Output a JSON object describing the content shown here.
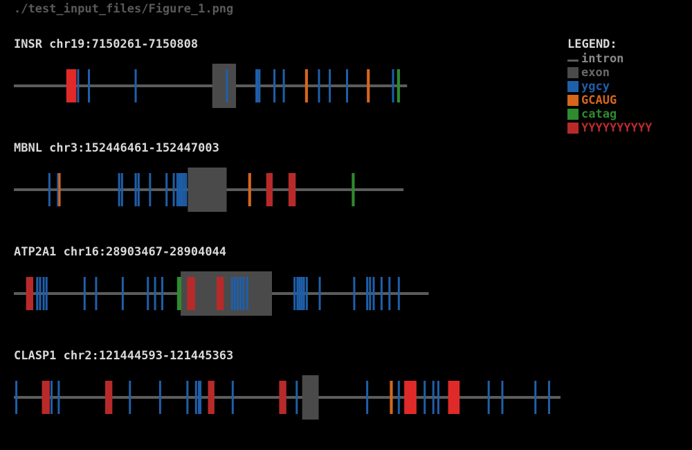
{
  "figure_title": "./test_input_files/Figure_1.png",
  "legend": {
    "title": "LEGEND:",
    "items": [
      {
        "key": "intron",
        "label": "intron",
        "color": "#5c5c5c",
        "kind": "line",
        "icon": "line-swatch"
      },
      {
        "key": "exon",
        "label": "exon",
        "color": "#4a4a4a",
        "kind": "box",
        "icon": "square-swatch"
      },
      {
        "key": "ygcy",
        "label": "ygcy",
        "color": "#1f5faa",
        "kind": "box",
        "icon": "square-swatch"
      },
      {
        "key": "GCAUG",
        "label": "GCAUG",
        "color": "#d5661c",
        "kind": "box",
        "icon": "square-swatch"
      },
      {
        "key": "catag",
        "label": "catag",
        "color": "#2e8b2e",
        "kind": "box",
        "icon": "square-swatch"
      },
      {
        "key": "YYYYYYYYYY",
        "label": "YYYYYYYYYY",
        "color": "#b82a2a",
        "kind": "box",
        "icon": "square-swatch"
      }
    ]
  },
  "chart_data": {
    "type": "gene_motif_map",
    "genes": [
      {
        "label": "INSR chr19:7150261-7150808",
        "length": 547,
        "exon": [
          276,
          309
        ],
        "motifs": [
          {
            "type": "YYYYYYYYYY",
            "start": 73,
            "end": 87
          },
          {
            "type": "ygcy",
            "start": 88,
            "end": 90
          },
          {
            "type": "ygcy",
            "start": 103,
            "end": 105
          },
          {
            "type": "ygcy",
            "start": 168,
            "end": 170
          },
          {
            "type": "ygcy",
            "start": 295,
            "end": 297
          },
          {
            "type": "ygcy",
            "start": 336,
            "end": 340
          },
          {
            "type": "ygcy",
            "start": 340,
            "end": 343
          },
          {
            "type": "ygcy",
            "start": 361,
            "end": 363
          },
          {
            "type": "ygcy",
            "start": 374,
            "end": 376
          },
          {
            "type": "GCAUG",
            "start": 405,
            "end": 409
          },
          {
            "type": "ygcy",
            "start": 423,
            "end": 425
          },
          {
            "type": "ygcy",
            "start": 438,
            "end": 440
          },
          {
            "type": "ygcy",
            "start": 462,
            "end": 464
          },
          {
            "type": "GCAUG",
            "start": 491,
            "end": 495
          },
          {
            "type": "ygcy",
            "start": 526,
            "end": 528
          },
          {
            "type": "catag",
            "start": 533,
            "end": 537
          }
        ]
      },
      {
        "label": "MBNL chr3:152446461-152447003",
        "length": 542,
        "exon": [
          242,
          296
        ],
        "motifs": [
          {
            "type": "ygcy",
            "start": 48,
            "end": 50
          },
          {
            "type": "ygcy",
            "start": 60,
            "end": 62
          },
          {
            "type": "GCAUG",
            "start": 62,
            "end": 65
          },
          {
            "type": "ygcy",
            "start": 145,
            "end": 147
          },
          {
            "type": "ygcy",
            "start": 149,
            "end": 151
          },
          {
            "type": "ygcy",
            "start": 168,
            "end": 171
          },
          {
            "type": "ygcy",
            "start": 172,
            "end": 175
          },
          {
            "type": "ygcy",
            "start": 188,
            "end": 190
          },
          {
            "type": "ygcy",
            "start": 211,
            "end": 213
          },
          {
            "type": "ygcy",
            "start": 221,
            "end": 223
          },
          {
            "type": "ygcy",
            "start": 226,
            "end": 228
          },
          {
            "type": "ygcy",
            "start": 229,
            "end": 231
          },
          {
            "type": "ygcy",
            "start": 232,
            "end": 234
          },
          {
            "type": "ygcy",
            "start": 235,
            "end": 237
          },
          {
            "type": "ygcy",
            "start": 238,
            "end": 240
          },
          {
            "type": "GCAUG",
            "start": 326,
            "end": 330
          },
          {
            "type": "YYYYYYYYYY",
            "start": 351,
            "end": 360
          },
          {
            "type": "YYYYYYYYYY",
            "start": 382,
            "end": 392
          },
          {
            "type": "catag",
            "start": 470,
            "end": 474
          }
        ]
      },
      {
        "label": "ATP2A1 chr16:28903467-28904044",
        "length": 577,
        "exon": [
          232,
          359
        ],
        "motifs": [
          {
            "type": "YYYYYYYYYY",
            "start": 17,
            "end": 27
          },
          {
            "type": "ygcy",
            "start": 31,
            "end": 34
          },
          {
            "type": "ygcy",
            "start": 35,
            "end": 38
          },
          {
            "type": "ygcy",
            "start": 40,
            "end": 42
          },
          {
            "type": "ygcy",
            "start": 44,
            "end": 46
          },
          {
            "type": "ygcy",
            "start": 97,
            "end": 99
          },
          {
            "type": "ygcy",
            "start": 113,
            "end": 115
          },
          {
            "type": "ygcy",
            "start": 150,
            "end": 152
          },
          {
            "type": "ygcy",
            "start": 185,
            "end": 187
          },
          {
            "type": "ygcy",
            "start": 195,
            "end": 197
          },
          {
            "type": "ygcy",
            "start": 205,
            "end": 207
          },
          {
            "type": "catag",
            "start": 227,
            "end": 233
          },
          {
            "type": "YYYYYYYYYY",
            "start": 241,
            "end": 252
          },
          {
            "type": "YYYYYYYYYY",
            "start": 282,
            "end": 292
          },
          {
            "type": "ygcy",
            "start": 302,
            "end": 304
          },
          {
            "type": "ygcy",
            "start": 306,
            "end": 308
          },
          {
            "type": "ygcy",
            "start": 310,
            "end": 312
          },
          {
            "type": "ygcy",
            "start": 314,
            "end": 316
          },
          {
            "type": "ygcy",
            "start": 318,
            "end": 320
          },
          {
            "type": "ygcy",
            "start": 323,
            "end": 325
          },
          {
            "type": "ygcy",
            "start": 389,
            "end": 391
          },
          {
            "type": "ygcy",
            "start": 393,
            "end": 395
          },
          {
            "type": "ygcy",
            "start": 396,
            "end": 398
          },
          {
            "type": "ygcy",
            "start": 399,
            "end": 401
          },
          {
            "type": "ygcy",
            "start": 402,
            "end": 404
          },
          {
            "type": "ygcy",
            "start": 406,
            "end": 408
          },
          {
            "type": "ygcy",
            "start": 424,
            "end": 426
          },
          {
            "type": "ygcy",
            "start": 472,
            "end": 474
          },
          {
            "type": "ygcy",
            "start": 490,
            "end": 492
          },
          {
            "type": "ygcy",
            "start": 494,
            "end": 496
          },
          {
            "type": "ygcy",
            "start": 499,
            "end": 501
          },
          {
            "type": "ygcy",
            "start": 510,
            "end": 512
          },
          {
            "type": "ygcy",
            "start": 521,
            "end": 523
          },
          {
            "type": "ygcy",
            "start": 534,
            "end": 536
          }
        ]
      },
      {
        "label": "CLASP1 chr2:121444593-121445363",
        "length": 770,
        "exon": [
          401,
          424
        ],
        "motifs": [
          {
            "type": "ygcy",
            "start": 2,
            "end": 4
          },
          {
            "type": "YYYYYYYYYY",
            "start": 39,
            "end": 50
          },
          {
            "type": "ygcy",
            "start": 51,
            "end": 53
          },
          {
            "type": "ygcy",
            "start": 61,
            "end": 63
          },
          {
            "type": "YYYYYYYYYY",
            "start": 127,
            "end": 137
          },
          {
            "type": "ygcy",
            "start": 160,
            "end": 162
          },
          {
            "type": "ygcy",
            "start": 202,
            "end": 204
          },
          {
            "type": "ygcy",
            "start": 240,
            "end": 242
          },
          {
            "type": "ygcy",
            "start": 252,
            "end": 254
          },
          {
            "type": "ygcy",
            "start": 256,
            "end": 258
          },
          {
            "type": "ygcy",
            "start": 258,
            "end": 260
          },
          {
            "type": "YYYYYYYYYY",
            "start": 270,
            "end": 279
          },
          {
            "type": "ygcy",
            "start": 303,
            "end": 305
          },
          {
            "type": "YYYYYYYYYY",
            "start": 369,
            "end": 379
          },
          {
            "type": "ygcy",
            "start": 392,
            "end": 394
          },
          {
            "type": "ygcy",
            "start": 490,
            "end": 492
          },
          {
            "type": "GCAUG",
            "start": 523,
            "end": 527
          },
          {
            "type": "ygcy",
            "start": 534,
            "end": 536
          },
          {
            "type": "YYYYYYYYYY",
            "start": 543,
            "end": 560
          },
          {
            "type": "ygcy",
            "start": 570,
            "end": 572
          },
          {
            "type": "ygcy",
            "start": 582,
            "end": 584
          },
          {
            "type": "ygcy",
            "start": 589,
            "end": 591
          },
          {
            "type": "YYYYYYYYYY",
            "start": 604,
            "end": 620
          },
          {
            "type": "ygcy",
            "start": 659,
            "end": 661
          },
          {
            "type": "ygcy",
            "start": 678,
            "end": 680
          },
          {
            "type": "ygcy",
            "start": 724,
            "end": 726
          },
          {
            "type": "ygcy",
            "start": 743,
            "end": 745
          }
        ]
      }
    ]
  }
}
